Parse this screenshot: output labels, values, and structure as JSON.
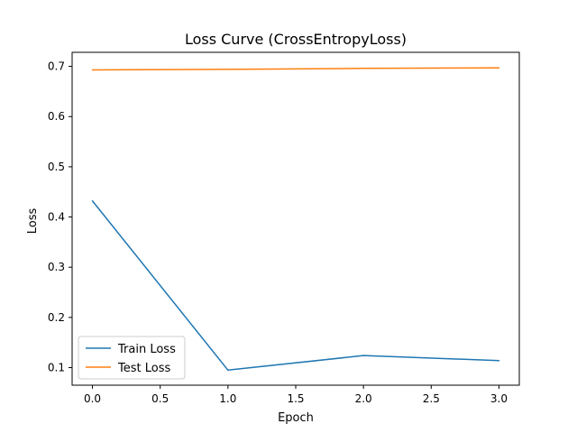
{
  "chart_data": {
    "type": "line",
    "title": "Loss Curve (CrossEntropyLoss)",
    "xlabel": "Epoch",
    "ylabel": "Loss",
    "x": [
      0,
      1,
      2,
      3
    ],
    "xlim": [
      -0.15,
      3.15
    ],
    "ylim": [
      0.065,
      0.728
    ],
    "xticks": [
      "0.0",
      "0.5",
      "1.0",
      "1.5",
      "2.0",
      "2.5",
      "3.0"
    ],
    "xtick_values": [
      0,
      0.5,
      1,
      1.5,
      2,
      2.5,
      3
    ],
    "yticks": [
      "0.1",
      "0.2",
      "0.3",
      "0.4",
      "0.5",
      "0.6",
      "0.7"
    ],
    "ytick_values": [
      0.1,
      0.2,
      0.3,
      0.4,
      0.5,
      0.6,
      0.7
    ],
    "grid": false,
    "legend_position": "lower-left",
    "series": [
      {
        "name": "Train Loss",
        "color": "#1f77b4",
        "values": [
          0.432,
          0.095,
          0.124,
          0.114
        ]
      },
      {
        "name": "Test Loss",
        "color": "#ff7f0e",
        "values": [
          0.693,
          0.694,
          0.696,
          0.697
        ]
      }
    ]
  }
}
